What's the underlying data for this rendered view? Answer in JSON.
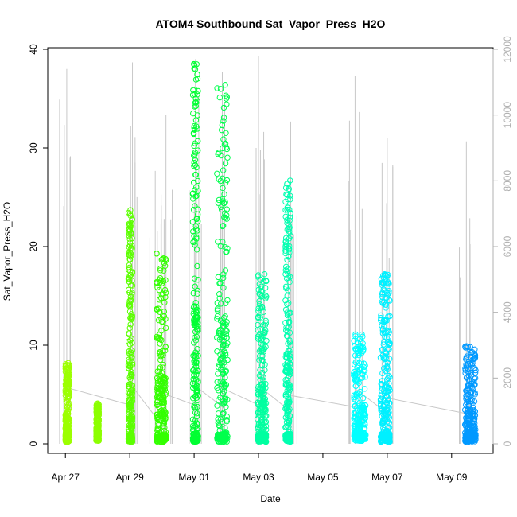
{
  "chart_data": {
    "type": "scatter",
    "title": "ATOM4 Southbound Sat_Vapor_Press_H2O",
    "xlabel": "Date",
    "ylabel": "Sat_Vapor_Press_H2O",
    "xlim": [
      "2016-04-26T12:00",
      "2016-05-10T04:00"
    ],
    "ylim": [
      0,
      40
    ],
    "y_ticks": [
      0,
      10,
      20,
      30,
      40
    ],
    "x_ticks": [
      {
        "label": "Apr 27",
        "date": "2016-04-27T00:00"
      },
      {
        "label": "Apr 29",
        "date": "2016-04-29T00:00"
      },
      {
        "label": "May 01",
        "date": "2016-05-01T00:00"
      },
      {
        "label": "May 03",
        "date": "2016-05-03T00:00"
      },
      {
        "label": "May 05",
        "date": "2016-05-05T00:00"
      },
      {
        "label": "May 07",
        "date": "2016-05-07T00:00"
      },
      {
        "label": "May 09",
        "date": "2016-05-09T00:00"
      }
    ],
    "secondary_axis": {
      "side": "right",
      "ylim": [
        0,
        12000
      ],
      "ticks": [
        0,
        2000,
        4000,
        6000,
        8000,
        10000,
        12000
      ],
      "color": "#b0b0b0"
    },
    "grid": false,
    "series": [
      {
        "start": "2016-04-27T00:00",
        "end": "2016-04-27T03:00",
        "min": 0.2,
        "max": 8.2,
        "color": "#9cff00"
      },
      {
        "start": "2016-04-27T23:00",
        "end": "2016-04-28T01:00",
        "min": 0.3,
        "max": 4.1,
        "color": "#8cff00"
      },
      {
        "start": "2016-04-28T23:00",
        "end": "2016-04-29T02:00",
        "min": 0.2,
        "max": 23.7,
        "color": "#5cff00"
      },
      {
        "start": "2016-04-29T20:00",
        "end": "2016-04-30T03:00",
        "min": 0.2,
        "max": 19.3,
        "color": "#33ff00"
      },
      {
        "start": "2016-04-30T23:00",
        "end": "2016-05-01T03:00",
        "min": 0.2,
        "max": 38.5,
        "color": "#00ff33"
      },
      {
        "start": "2016-05-01T17:00",
        "end": "2016-05-02T01:00",
        "min": 0.2,
        "max": 36.4,
        "color": "#00ff4d"
      },
      {
        "start": "2016-05-02T23:00",
        "end": "2016-05-03T06:00",
        "min": 0.2,
        "max": 17.2,
        "color": "#00ffa0"
      },
      {
        "start": "2016-05-03T20:00",
        "end": "2016-05-04T00:00",
        "min": 0.2,
        "max": 26.7,
        "color": "#00ffb0"
      },
      {
        "start": "2016-05-05T23:00",
        "end": "2016-05-06T08:00",
        "min": 0.3,
        "max": 11.1,
        "color": "#00ffff"
      },
      {
        "start": "2016-05-06T19:00",
        "end": "2016-05-07T02:00",
        "min": 0.2,
        "max": 17.2,
        "color": "#00f0ff"
      },
      {
        "start": "2016-05-09T10:00",
        "end": "2016-05-09T18:00",
        "min": 0.2,
        "max": 9.9,
        "color": "#0099ff"
      }
    ],
    "secondary_series": {
      "color": "#c8c8c8",
      "spikes": [
        {
          "date": "2016-04-27T01:00",
          "value": 11400
        },
        {
          "date": "2016-04-29T02:00",
          "value": 11600
        },
        {
          "date": "2016-04-29T19:00",
          "value": 8300
        },
        {
          "date": "2016-04-30T03:00",
          "value": 10000
        },
        {
          "date": "2016-05-01T01:00",
          "value": 11700
        },
        {
          "date": "2016-05-01T21:00",
          "value": 11300
        },
        {
          "date": "2016-05-03T00:00",
          "value": 11800
        },
        {
          "date": "2016-05-04T00:00",
          "value": 9800
        },
        {
          "date": "2016-05-06T00:00",
          "value": 11200
        },
        {
          "date": "2016-05-07T00:00",
          "value": 9300
        },
        {
          "date": "2016-05-09T11:00",
          "value": 9200
        }
      ]
    }
  }
}
